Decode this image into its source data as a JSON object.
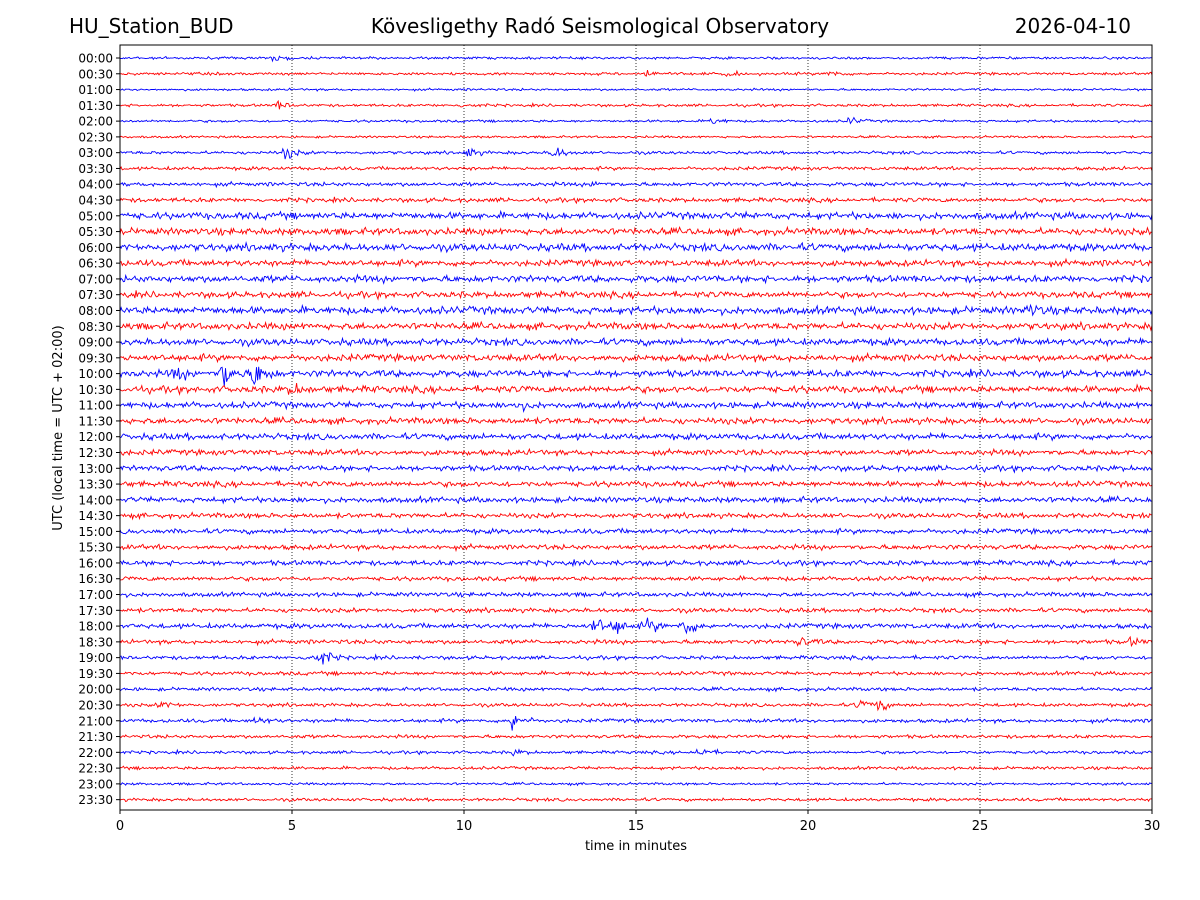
{
  "header": {
    "station": "HU_Station_BUD",
    "observatory": "Kövesligethy Radó Seismological Observatory",
    "date": "2026-04-10"
  },
  "chart_data": {
    "type": "line",
    "title": "Kövesligethy Radó Seismological Observatory",
    "xlabel": "time in minutes",
    "ylabel": "UTC (local time = UTC + 02:00)",
    "xlim": [
      0,
      30
    ],
    "x_ticks": [
      0,
      5,
      10,
      15,
      20,
      25,
      30
    ],
    "x_tick_labels": [
      "0",
      "5",
      "10",
      "15",
      "20",
      "25",
      "30"
    ],
    "grid": "vertical dotted at 5-minute intervals",
    "trace_colors": [
      "#0000ff",
      "#ff0000"
    ],
    "rows": [
      "00:00",
      "00:30",
      "01:00",
      "01:30",
      "02:00",
      "02:30",
      "03:00",
      "03:30",
      "04:00",
      "04:30",
      "05:00",
      "05:30",
      "06:00",
      "06:30",
      "07:00",
      "07:30",
      "08:00",
      "08:30",
      "09:00",
      "09:30",
      "10:00",
      "10:30",
      "11:00",
      "11:30",
      "12:00",
      "12:30",
      "13:00",
      "13:30",
      "14:00",
      "14:30",
      "15:00",
      "15:30",
      "16:00",
      "16:30",
      "17:00",
      "17:30",
      "18:00",
      "18:30",
      "19:00",
      "19:30",
      "20:00",
      "20:30",
      "21:00",
      "21:30",
      "22:00",
      "22:30",
      "23:00",
      "23:30"
    ],
    "noise_levels": [
      0.2,
      0.22,
      0.18,
      0.22,
      0.2,
      0.18,
      0.25,
      0.28,
      0.32,
      0.35,
      0.55,
      0.55,
      0.6,
      0.5,
      0.55,
      0.5,
      0.6,
      0.55,
      0.55,
      0.55,
      0.55,
      0.55,
      0.5,
      0.5,
      0.5,
      0.45,
      0.45,
      0.45,
      0.45,
      0.4,
      0.4,
      0.4,
      0.4,
      0.35,
      0.35,
      0.35,
      0.4,
      0.35,
      0.3,
      0.3,
      0.28,
      0.28,
      0.3,
      0.28,
      0.25,
      0.25,
      0.2,
      0.25
    ],
    "events": [
      {
        "row": "00:00",
        "minute": 4.5,
        "amplitude": 0.6
      },
      {
        "row": "00:30",
        "minute": 15.3,
        "amplitude": 0.6
      },
      {
        "row": "00:30",
        "minute": 17.6,
        "amplitude": 0.5
      },
      {
        "row": "00:30",
        "minute": 20.6,
        "amplitude": 0.6
      },
      {
        "row": "01:30",
        "minute": 4.6,
        "amplitude": 0.6
      },
      {
        "row": "01:30",
        "minute": 10.0,
        "amplitude": 0.4
      },
      {
        "row": "02:00",
        "minute": 17.2,
        "amplitude": 0.6
      },
      {
        "row": "02:00",
        "minute": 21.2,
        "amplitude": 0.6
      },
      {
        "row": "03:00",
        "minute": 4.8,
        "amplitude": 1.1
      },
      {
        "row": "03:00",
        "minute": 10.1,
        "amplitude": 0.8
      },
      {
        "row": "03:00",
        "minute": 12.6,
        "amplitude": 1.2
      },
      {
        "row": "04:00",
        "minute": 13.8,
        "amplitude": 0.6
      },
      {
        "row": "08:00",
        "minute": 26.4,
        "amplitude": 0.8
      },
      {
        "row": "10:00",
        "minute": 1.6,
        "amplitude": 1.0
      },
      {
        "row": "10:00",
        "minute": 3.0,
        "amplitude": 2.6
      },
      {
        "row": "10:00",
        "minute": 3.9,
        "amplitude": 2.6
      },
      {
        "row": "10:30",
        "minute": 5.0,
        "amplitude": 0.9
      },
      {
        "row": "11:00",
        "minute": 11.5,
        "amplitude": 0.7
      },
      {
        "row": "18:00",
        "minute": 13.8,
        "amplitude": 1.6
      },
      {
        "row": "18:00",
        "minute": 14.4,
        "amplitude": 1.2
      },
      {
        "row": "18:00",
        "minute": 15.3,
        "amplitude": 1.3
      },
      {
        "row": "18:00",
        "minute": 16.4,
        "amplitude": 1.8
      },
      {
        "row": "18:30",
        "minute": 19.8,
        "amplitude": 0.8
      },
      {
        "row": "18:30",
        "minute": 29.4,
        "amplitude": 0.6
      },
      {
        "row": "19:00",
        "minute": 5.5,
        "amplitude": 1.0
      },
      {
        "row": "19:00",
        "minute": 5.9,
        "amplitude": 1.0
      },
      {
        "row": "20:30",
        "minute": 1.2,
        "amplitude": 0.6
      },
      {
        "row": "20:30",
        "minute": 21.5,
        "amplitude": 0.8
      },
      {
        "row": "20:30",
        "minute": 22.0,
        "amplitude": 1.0
      },
      {
        "row": "21:00",
        "minute": 11.4,
        "amplitude": 1.7
      },
      {
        "row": "21:00",
        "minute": 4.0,
        "amplitude": 0.6
      },
      {
        "row": "22:00",
        "minute": 16.8,
        "amplitude": 0.9
      },
      {
        "row": "22:00",
        "minute": 11.4,
        "amplitude": 0.5
      }
    ]
  }
}
